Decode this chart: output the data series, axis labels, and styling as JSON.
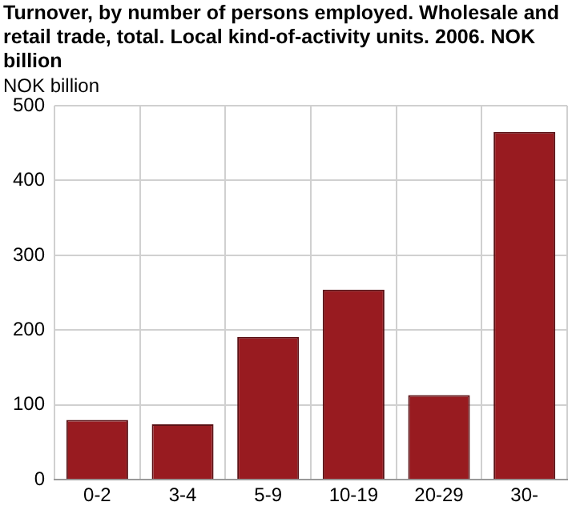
{
  "chart_data": {
    "type": "bar",
    "title": "Turnover, by number of persons employed. Wholesale and retail trade, total. Local kind-of-activity units. 2006. NOK billion",
    "ylabel": "NOK billion",
    "categories": [
      "0-2",
      "3-4",
      "5-9",
      "10-19",
      "20-29",
      "30-"
    ],
    "values": [
      80,
      74,
      191,
      254,
      113,
      465
    ],
    "color": "#981b20",
    "ylim": [
      0,
      500
    ],
    "yticks": [
      0,
      100,
      200,
      300,
      400,
      500
    ],
    "grid": true,
    "legend": false
  }
}
